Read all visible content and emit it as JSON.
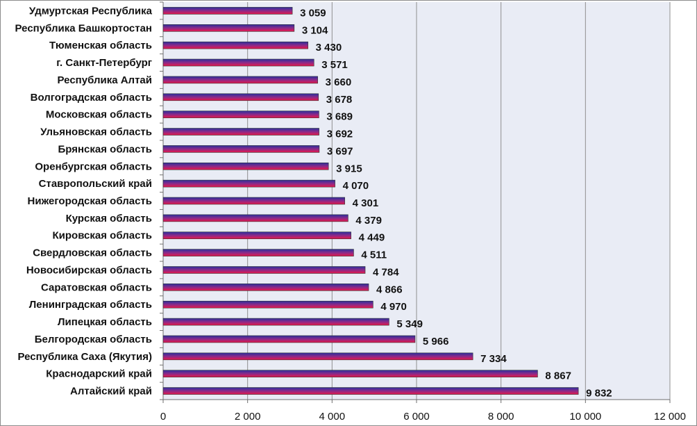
{
  "chart_data": {
    "type": "bar",
    "orientation": "horizontal",
    "categories": [
      "Удмуртская Республика",
      "Республика Башкортостан",
      "Тюменская область",
      "г. Санкт-Петербург",
      "Республика Алтай",
      "Волгоградская область",
      "Московская область",
      "Ульяновская область",
      "Брянская область",
      "Оренбургская область",
      "Ставропольский край",
      "Нижегородская область",
      "Курская область",
      "Кировская область",
      "Свердловская область",
      "Новосибирская область",
      "Саратовская область",
      "Ленинградская область",
      "Липецкая область",
      "Белгородская область",
      "Республика Саха (Якутия)",
      "Краснодарский край",
      "Алтайский край"
    ],
    "values": [
      3059,
      3104,
      3430,
      3571,
      3660,
      3678,
      3689,
      3692,
      3697,
      3915,
      4070,
      4301,
      4379,
      4449,
      4511,
      4784,
      4866,
      4970,
      5349,
      5966,
      7334,
      8867,
      9832
    ],
    "value_labels": [
      "3 059",
      "3 104",
      "3 430",
      "3 571",
      "3 660",
      "3 678",
      "3 689",
      "3 692",
      "3 697",
      "3 915",
      "4 070",
      "4 301",
      "4 379",
      "4 449",
      "4 511",
      "4 784",
      "4 866",
      "4 970",
      "5 349",
      "5 966",
      "7 334",
      "8 867",
      "9 832"
    ],
    "x_ticks": [
      0,
      2000,
      4000,
      6000,
      8000,
      10000,
      12000
    ],
    "x_tick_labels": [
      "0",
      "2 000",
      "4 000",
      "6 000",
      "8 000",
      "10 000",
      "12 000"
    ],
    "xlim": [
      0,
      12000
    ],
    "title": "",
    "xlabel": "",
    "ylabel": "",
    "grid": "vertical",
    "legend": "none",
    "colors": {
      "plot_background": "#e9ecf5",
      "bar_top": "#2b2f9c",
      "bar_bottom": "#e8174a",
      "bar_outline": "#333333",
      "gridline": "#8f8f8f",
      "axis": "#6e6e6e",
      "frame": "#8c8c8c"
    }
  }
}
